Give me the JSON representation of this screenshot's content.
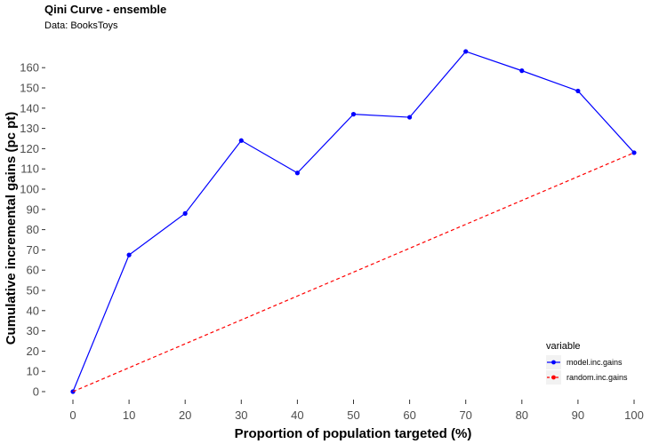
{
  "chart_data": {
    "type": "line",
    "title": "Qini Curve -  ensemble",
    "subtitle": "Data: BooksToys",
    "xlabel": "Proportion of population targeted (%)",
    "ylabel": "Cumulative incremental gains (pc pt)",
    "xlim": [
      0,
      100
    ],
    "ylim": [
      0,
      165
    ],
    "x_ticks": [
      0,
      10,
      20,
      30,
      40,
      50,
      60,
      70,
      80,
      90,
      100
    ],
    "y_ticks": [
      0,
      10,
      20,
      30,
      40,
      50,
      60,
      70,
      80,
      90,
      100,
      110,
      120,
      130,
      140,
      150,
      160
    ],
    "grid": false,
    "x": [
      0,
      10,
      20,
      30,
      40,
      50,
      60,
      70,
      80,
      90,
      100
    ],
    "series": [
      {
        "name": "model.inc.gains",
        "color": "#0000ff",
        "line_style": "solid",
        "markers": true,
        "values": [
          0,
          67.5,
          88,
          124,
          108,
          137,
          135.5,
          168,
          158.5,
          148.5,
          118
        ]
      },
      {
        "name": "random.inc.gains",
        "color": "#ff0000",
        "line_style": "dashed",
        "markers": false,
        "values": [
          0,
          11.8,
          23.6,
          35.4,
          47.2,
          59,
          70.8,
          82.6,
          94.4,
          106.2,
          118
        ]
      }
    ],
    "legend": {
      "title": "variable",
      "position": "bottom-right"
    }
  }
}
